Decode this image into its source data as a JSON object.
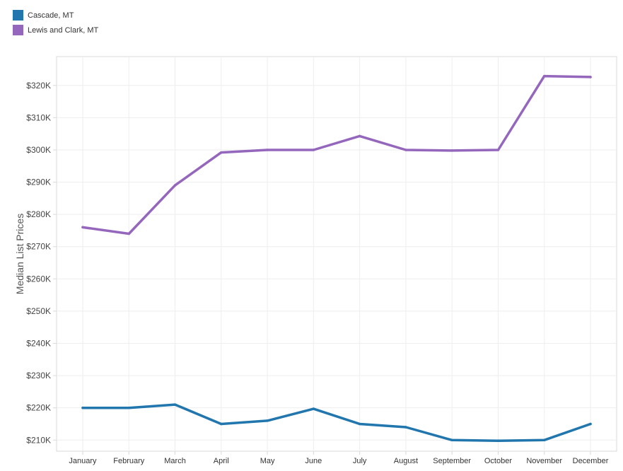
{
  "chart_data": {
    "type": "line",
    "categories": [
      "January",
      "February",
      "March",
      "April",
      "May",
      "June",
      "July",
      "August",
      "September",
      "October",
      "November",
      "December"
    ],
    "series": [
      {
        "name": "Cascade, MT",
        "color": "#2176ae",
        "values": [
          220000,
          220000,
          221000,
          215000,
          216000,
          219700,
          215000,
          214000,
          210000,
          209800,
          210000,
          215000
        ]
      },
      {
        "name": "Lewis and Clark, MT",
        "color": "#9467bd",
        "values": [
          276000,
          274000,
          289000,
          299200,
          300000,
          300000,
          304300,
          300000,
          299800,
          300000,
          322900,
          322600
        ]
      }
    ],
    "xlabel": "",
    "ylabel": "Median List Prices",
    "ylim": [
      206550,
      328950
    ],
    "yticks": [
      210000,
      220000,
      230000,
      240000,
      250000,
      260000,
      270000,
      280000,
      290000,
      300000,
      310000,
      320000
    ],
    "ytick_labels": [
      "$210K",
      "$220K",
      "$230K",
      "$240K",
      "$250K",
      "$260K",
      "$270K",
      "$280K",
      "$290K",
      "$300K",
      "$310K",
      "$320K"
    ],
    "grid": true,
    "legend_position": "top-left"
  },
  "colors": {
    "grid": "#eeeeee",
    "axis": "#d9d9d9",
    "text": "#444444"
  }
}
